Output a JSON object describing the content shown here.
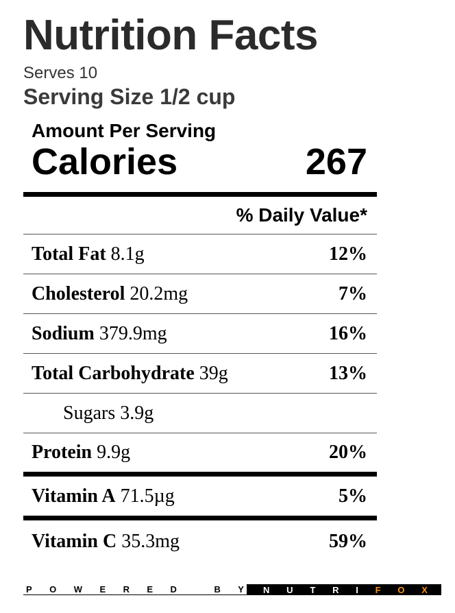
{
  "label": {
    "title": "Nutrition Facts",
    "serves": "Serves 10",
    "serving_size": "Serving Size 1/2 cup",
    "amount_per_serving": "Amount Per Serving",
    "calories_label": "Calories",
    "calories_value": "267",
    "daily_value_header": "% Daily Value*"
  },
  "nutrients": [
    {
      "name": "Total Fat",
      "amount": "8.1g",
      "dv": "12%"
    },
    {
      "name": "Cholesterol",
      "amount": "20.2mg",
      "dv": "7%"
    },
    {
      "name": "Sodium",
      "amount": "379.9mg",
      "dv": "16%"
    },
    {
      "name": "Total Carbohydrate",
      "amount": "39g",
      "dv": "13%"
    },
    {
      "name": "Sugars",
      "amount": "3.9g",
      "dv": ""
    },
    {
      "name": "Protein",
      "amount": "9.9g",
      "dv": "20%"
    }
  ],
  "vitamins": [
    {
      "name": "Vitamin A",
      "amount": "71.5µg",
      "dv": "5%"
    },
    {
      "name": "Vitamin C",
      "amount": "35.3mg",
      "dv": "59%"
    }
  ],
  "footer": {
    "powered_by": "POWERED BY",
    "brand_white": "NUTRI",
    "brand_orange": "FOX",
    "brand_orange_color": "#f7941d"
  }
}
